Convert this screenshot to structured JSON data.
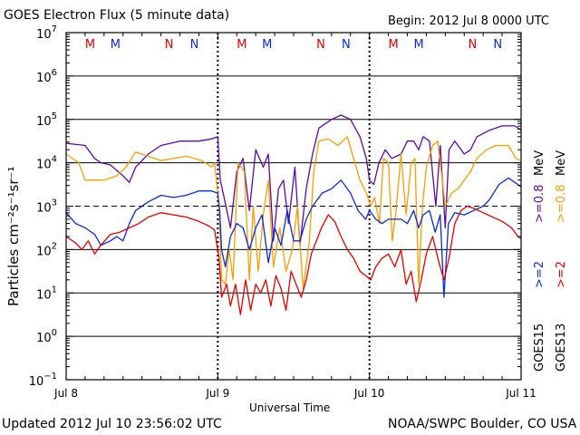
{
  "header": {
    "title": "GOES Electron Flux (5 minute data)",
    "begin": "Begin: 2012 Jul 8 0000 UTC"
  },
  "footer": {
    "updated": "Updated 2012 Jul 10 23:56:02 UTC",
    "credit": "NOAA/SWPC Boulder, CO USA"
  },
  "colors": {
    "goes15_gt2": "#0a2bd6",
    "goes15_gt08": "#5a0aa0",
    "goes13_gt2": "#e00000",
    "goes13_gt08": "#f5a000",
    "marker_M": "#e00000",
    "marker_M2": "#0a2bd6",
    "marker_N": "#e00000",
    "marker_N2": "#0a2bd6"
  },
  "chart_data": {
    "type": "line",
    "title": "GOES Electron Flux (5 minute data)",
    "xlabel": "Universal Time",
    "ylabel": "Particles cm⁻²s⁻¹sr⁻¹",
    "yscale": "log",
    "xlim": [
      0,
      72
    ],
    "ylim_exp": [
      -1,
      7
    ],
    "x_ticks": [
      {
        "x": 0,
        "label": "Jul 8"
      },
      {
        "x": 24,
        "label": "Jul 9"
      },
      {
        "x": 48,
        "label": "Jul 10"
      },
      {
        "x": 72,
        "label": "Jul 11"
      }
    ],
    "y_ticks": [
      -1,
      0,
      1,
      2,
      3,
      4,
      5,
      6,
      7
    ],
    "threshold_dashed": 3,
    "markers": [
      {
        "x": 3.8,
        "label": "M",
        "color": "marker_M"
      },
      {
        "x": 7.8,
        "label": "M",
        "color": "marker_M2"
      },
      {
        "x": 16.3,
        "label": "N",
        "color": "marker_N"
      },
      {
        "x": 20.3,
        "label": "N",
        "color": "marker_N2"
      },
      {
        "x": 27.8,
        "label": "M",
        "color": "marker_M"
      },
      {
        "x": 31.8,
        "label": "M",
        "color": "marker_M2"
      },
      {
        "x": 40.3,
        "label": "N",
        "color": "marker_N"
      },
      {
        "x": 44.3,
        "label": "N",
        "color": "marker_N2"
      },
      {
        "x": 51.8,
        "label": "M",
        "color": "marker_M"
      },
      {
        "x": 55.8,
        "label": "M",
        "color": "marker_M2"
      },
      {
        "x": 64.3,
        "label": "N",
        "color": "marker_N"
      },
      {
        "x": 68.3,
        "label": "N",
        "color": "marker_N2"
      }
    ],
    "series": [
      {
        "name": "GOES15 >=0.8 MeV",
        "color": "goes15_gt08",
        "points": [
          [
            0,
            4.45
          ],
          [
            3,
            4.4
          ],
          [
            4.5,
            4.1
          ],
          [
            5.5,
            4.0
          ],
          [
            7,
            3.95
          ],
          [
            9,
            3.7
          ],
          [
            10,
            3.55
          ],
          [
            11,
            3.9
          ],
          [
            13,
            4.2
          ],
          [
            15,
            4.4
          ],
          [
            18,
            4.5
          ],
          [
            21,
            4.5
          ],
          [
            23,
            4.55
          ],
          [
            24,
            4.6
          ],
          [
            24.4,
            3.6
          ],
          [
            25,
            3.2
          ],
          [
            26,
            2.5
          ],
          [
            27,
            3.8
          ],
          [
            28,
            4.1
          ],
          [
            29,
            2.9
          ],
          [
            30,
            4.3
          ],
          [
            31.2,
            3.9
          ],
          [
            32,
            4.2
          ],
          [
            32.8,
            2.2
          ],
          [
            33.6,
            3.4
          ],
          [
            34.4,
            3.6
          ],
          [
            35.2,
            2.6
          ],
          [
            36.2,
            3.9
          ],
          [
            37,
            2.1
          ],
          [
            38,
            3.4
          ],
          [
            39,
            4.2
          ],
          [
            40,
            4.8
          ],
          [
            42,
            5.0
          ],
          [
            43.5,
            5.1
          ],
          [
            45,
            5.0
          ],
          [
            46.5,
            4.6
          ],
          [
            47.5,
            4.1
          ],
          [
            48,
            3.6
          ],
          [
            48.7,
            3.5
          ],
          [
            49.5,
            4.0
          ],
          [
            50.5,
            4.3
          ],
          [
            51.5,
            4.1
          ],
          [
            53,
            4.2
          ],
          [
            54,
            4.5
          ],
          [
            55,
            4.5
          ],
          [
            55.8,
            4.3
          ],
          [
            56.5,
            4.6
          ],
          [
            57.5,
            4.5
          ],
          [
            58.5,
            3.0
          ],
          [
            59.2,
            4.4
          ],
          [
            60,
            2.5
          ],
          [
            60.6,
            4.3
          ],
          [
            61.5,
            4.5
          ],
          [
            63,
            4.2
          ],
          [
            64,
            4.3
          ],
          [
            65,
            4.6
          ],
          [
            67,
            4.75
          ],
          [
            69,
            4.85
          ],
          [
            71,
            4.85
          ],
          [
            72,
            4.75
          ]
        ]
      },
      {
        "name": "GOES13 >=0.8 MeV",
        "color": "goes13_gt08",
        "points": [
          [
            0,
            4.2
          ],
          [
            2,
            4.0
          ],
          [
            3,
            3.6
          ],
          [
            4.5,
            3.6
          ],
          [
            6,
            3.6
          ],
          [
            8,
            3.7
          ],
          [
            9.5,
            3.9
          ],
          [
            11,
            4.25
          ],
          [
            13,
            4.15
          ],
          [
            15,
            4.05
          ],
          [
            17,
            4.1
          ],
          [
            19,
            4.15
          ],
          [
            21.5,
            4.05
          ],
          [
            23,
            3.9
          ],
          [
            23.5,
            4.0
          ],
          [
            24.2,
            3.0
          ],
          [
            24.6,
            1.3
          ],
          [
            25.2,
            1.2
          ],
          [
            25.8,
            2.0
          ],
          [
            26.4,
            1.3
          ],
          [
            27.2,
            4.0
          ],
          [
            28.2,
            3.8
          ],
          [
            29,
            1.3
          ],
          [
            29.6,
            3.0
          ],
          [
            30.4,
            1.5
          ],
          [
            31.2,
            2.8
          ],
          [
            32,
            3.6
          ],
          [
            32.8,
            1.6
          ],
          [
            33.8,
            2.5
          ],
          [
            34.8,
            1.5
          ],
          [
            35.8,
            2.0
          ],
          [
            36.6,
            3.0
          ],
          [
            37.5,
            1.1
          ],
          [
            38.5,
            2.2
          ],
          [
            39.2,
            3.8
          ],
          [
            40,
            4.5
          ],
          [
            41.5,
            4.55
          ],
          [
            43,
            4.4
          ],
          [
            44.5,
            4.6
          ],
          [
            45.5,
            4.1
          ],
          [
            46.5,
            3.6
          ],
          [
            47.5,
            3.3
          ],
          [
            48.2,
            3.0
          ],
          [
            48.8,
            3.2
          ],
          [
            49.6,
            2.6
          ],
          [
            50.2,
            4.1
          ],
          [
            51,
            4.0
          ],
          [
            51.6,
            2.2
          ],
          [
            52.2,
            2.9
          ],
          [
            53,
            4.2
          ],
          [
            53.8,
            2.8
          ],
          [
            54.6,
            4.0
          ],
          [
            55.2,
            4.1
          ],
          [
            55.8,
            1.2
          ],
          [
            56.4,
            3.0
          ],
          [
            57,
            3.9
          ],
          [
            58,
            4.4
          ],
          [
            58.8,
            4.5
          ],
          [
            60,
            3.0
          ],
          [
            61,
            3.3
          ],
          [
            62,
            3.4
          ],
          [
            63,
            3.6
          ],
          [
            64,
            3.8
          ],
          [
            65,
            4.1
          ],
          [
            66.5,
            4.3
          ],
          [
            68,
            4.4
          ],
          [
            70,
            4.4
          ],
          [
            71.2,
            4.1
          ],
          [
            72,
            4.05
          ]
        ]
      },
      {
        "name": "GOES15 >=2 MeV",
        "color": "goes15_gt2",
        "points": [
          [
            0,
            2.85
          ],
          [
            1.5,
            2.6
          ],
          [
            3,
            2.5
          ],
          [
            4.5,
            2.35
          ],
          [
            5.5,
            2.1
          ],
          [
            7,
            2.2
          ],
          [
            8,
            2.3
          ],
          [
            9,
            2.2
          ],
          [
            10,
            2.6
          ],
          [
            11,
            2.9
          ],
          [
            13,
            3.1
          ],
          [
            15,
            3.25
          ],
          [
            17,
            3.2
          ],
          [
            19,
            3.25
          ],
          [
            21,
            3.35
          ],
          [
            23,
            3.35
          ],
          [
            24,
            3.3
          ],
          [
            24.3,
            2.9
          ],
          [
            24.6,
            2.0
          ],
          [
            25.2,
            1.6
          ],
          [
            26,
            2.3
          ],
          [
            27,
            2.6
          ],
          [
            28,
            2.5
          ],
          [
            29,
            2.0
          ],
          [
            30,
            2.5
          ],
          [
            31,
            2.8
          ],
          [
            32,
            1.7
          ],
          [
            33,
            2.5
          ],
          [
            34,
            2.1
          ],
          [
            35,
            2.9
          ],
          [
            36,
            2.2
          ],
          [
            37,
            2.2
          ],
          [
            38,
            2.7
          ],
          [
            39,
            3.0
          ],
          [
            40.5,
            3.3
          ],
          [
            42,
            3.4
          ],
          [
            43.5,
            3.6
          ],
          [
            45,
            3.3
          ],
          [
            46.2,
            2.9
          ],
          [
            47.4,
            2.7
          ],
          [
            48,
            2.9
          ],
          [
            49,
            2.7
          ],
          [
            50,
            2.6
          ],
          [
            51,
            2.7
          ],
          [
            52,
            2.7
          ],
          [
            53,
            2.7
          ],
          [
            54,
            2.6
          ],
          [
            55,
            2.9
          ],
          [
            55.8,
            2.5
          ],
          [
            56.5,
            2.8
          ],
          [
            57.5,
            2.9
          ],
          [
            58.4,
            2.4
          ],
          [
            59.2,
            2.8
          ],
          [
            59.8,
            0.9
          ],
          [
            60.5,
            2.6
          ],
          [
            61.5,
            2.85
          ],
          [
            63,
            2.8
          ],
          [
            64.5,
            2.9
          ],
          [
            66,
            3.0
          ],
          [
            67,
            3.15
          ],
          [
            68.5,
            3.5
          ],
          [
            70,
            3.65
          ],
          [
            71,
            3.55
          ],
          [
            72,
            3.45
          ]
        ]
      },
      {
        "name": "GOES13 >=2 MeV",
        "color": "goes13_gt2",
        "points": [
          [
            0,
            2.3
          ],
          [
            1.5,
            2.15
          ],
          [
            2.5,
            2.0
          ],
          [
            3.5,
            2.2
          ],
          [
            4.5,
            1.9
          ],
          [
            5.5,
            2.1
          ],
          [
            7,
            2.35
          ],
          [
            8.5,
            2.4
          ],
          [
            10,
            2.5
          ],
          [
            11.5,
            2.6
          ],
          [
            13,
            2.75
          ],
          [
            15,
            2.85
          ],
          [
            17,
            2.8
          ],
          [
            19,
            2.75
          ],
          [
            21,
            2.65
          ],
          [
            22.5,
            2.55
          ],
          [
            23.5,
            2.45
          ],
          [
            24.2,
            1.8
          ],
          [
            24.6,
            0.9
          ],
          [
            25.4,
            1.2
          ],
          [
            26,
            0.7
          ],
          [
            26.8,
            1.2
          ],
          [
            27.6,
            0.5
          ],
          [
            28.4,
            1.3
          ],
          [
            29.2,
            0.6
          ],
          [
            30,
            1.2
          ],
          [
            30.8,
            1.0
          ],
          [
            31.6,
            1.3
          ],
          [
            32.4,
            0.7
          ],
          [
            33.2,
            1.4
          ],
          [
            34,
            1.1
          ],
          [
            34.8,
            0.6
          ],
          [
            35.6,
            1.5
          ],
          [
            36.4,
            1.2
          ],
          [
            37.2,
            0.9
          ],
          [
            38,
            1.3
          ],
          [
            38.8,
            1.9
          ],
          [
            39.6,
            2.2
          ],
          [
            40.4,
            2.5
          ],
          [
            41.5,
            2.8
          ],
          [
            42.5,
            2.65
          ],
          [
            43.5,
            2.3
          ],
          [
            44.5,
            2.0
          ],
          [
            45.5,
            1.8
          ],
          [
            46.5,
            1.5
          ],
          [
            47.4,
            1.4
          ],
          [
            48.2,
            1.3
          ],
          [
            49,
            1.6
          ],
          [
            50,
            1.8
          ],
          [
            51,
            1.9
          ],
          [
            52,
            1.6
          ],
          [
            53,
            2.0
          ],
          [
            53.8,
            1.2
          ],
          [
            54.6,
            1.5
          ],
          [
            55.4,
            0.8
          ],
          [
            56.2,
            1.3
          ],
          [
            57,
            1.9
          ],
          [
            58,
            2.3
          ],
          [
            59,
            1.7
          ],
          [
            59.8,
            1.3
          ],
          [
            60.6,
            1.8
          ],
          [
            61.5,
            2.6
          ],
          [
            62.5,
            2.9
          ],
          [
            63.5,
            3.0
          ],
          [
            64.5,
            2.95
          ],
          [
            66,
            2.85
          ],
          [
            67.5,
            2.75
          ],
          [
            69,
            2.65
          ],
          [
            70.5,
            2.5
          ],
          [
            71.5,
            2.3
          ],
          [
            72,
            2.25
          ]
        ]
      }
    ],
    "right_labels": {
      "goes15": "GOES15",
      "goes13": "GOES13",
      "ch_gt2": ">=2",
      "ch_gt08": ">=0.8",
      "unit": "MeV"
    }
  }
}
